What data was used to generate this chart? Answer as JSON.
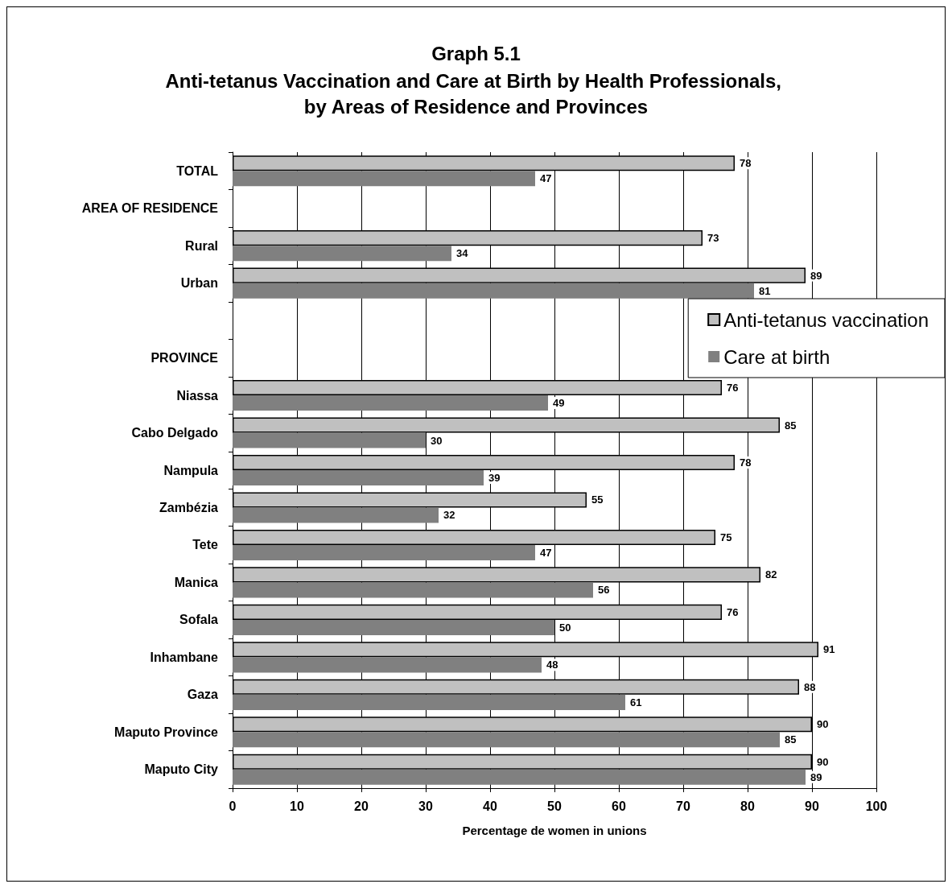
{
  "chart_data": {
    "type": "bar",
    "orientation": "horizontal",
    "title": "Graph 5.1",
    "subtitle": "Anti-tetanus Vaccination and Care at Birth by Health Professionals, by Areas of Residence and Provinces",
    "xlabel": "Percentage de women in unions",
    "categories": [
      "TOTAL",
      "AREA OF RESIDENCE",
      "Rural",
      "Urban",
      null,
      "PROVINCE",
      "Niassa",
      "Cabo Delgado",
      "Nampula",
      "Zambézia",
      "Tete",
      "Manica",
      "Sofala",
      "Inhambane",
      "Gaza",
      "Maputo Province",
      "Maputo City"
    ],
    "series": [
      {
        "name": "Anti-tetanus vaccination",
        "color": "#c0c0c0",
        "values": [
          78,
          null,
          73,
          89,
          null,
          null,
          76,
          85,
          78,
          55,
          75,
          82,
          76,
          91,
          88,
          90,
          90
        ]
      },
      {
        "name": "Care at birth",
        "color": "#808080",
        "values": [
          47,
          null,
          34,
          81,
          null,
          null,
          49,
          30,
          39,
          32,
          47,
          56,
          50,
          48,
          61,
          85,
          89
        ]
      }
    ],
    "xlim": [
      0,
      100
    ],
    "xticks": [
      0,
      10,
      20,
      30,
      40,
      50,
      60,
      70,
      80,
      90,
      100
    ],
    "grid": "x",
    "legend": "right",
    "data_labels": true
  }
}
